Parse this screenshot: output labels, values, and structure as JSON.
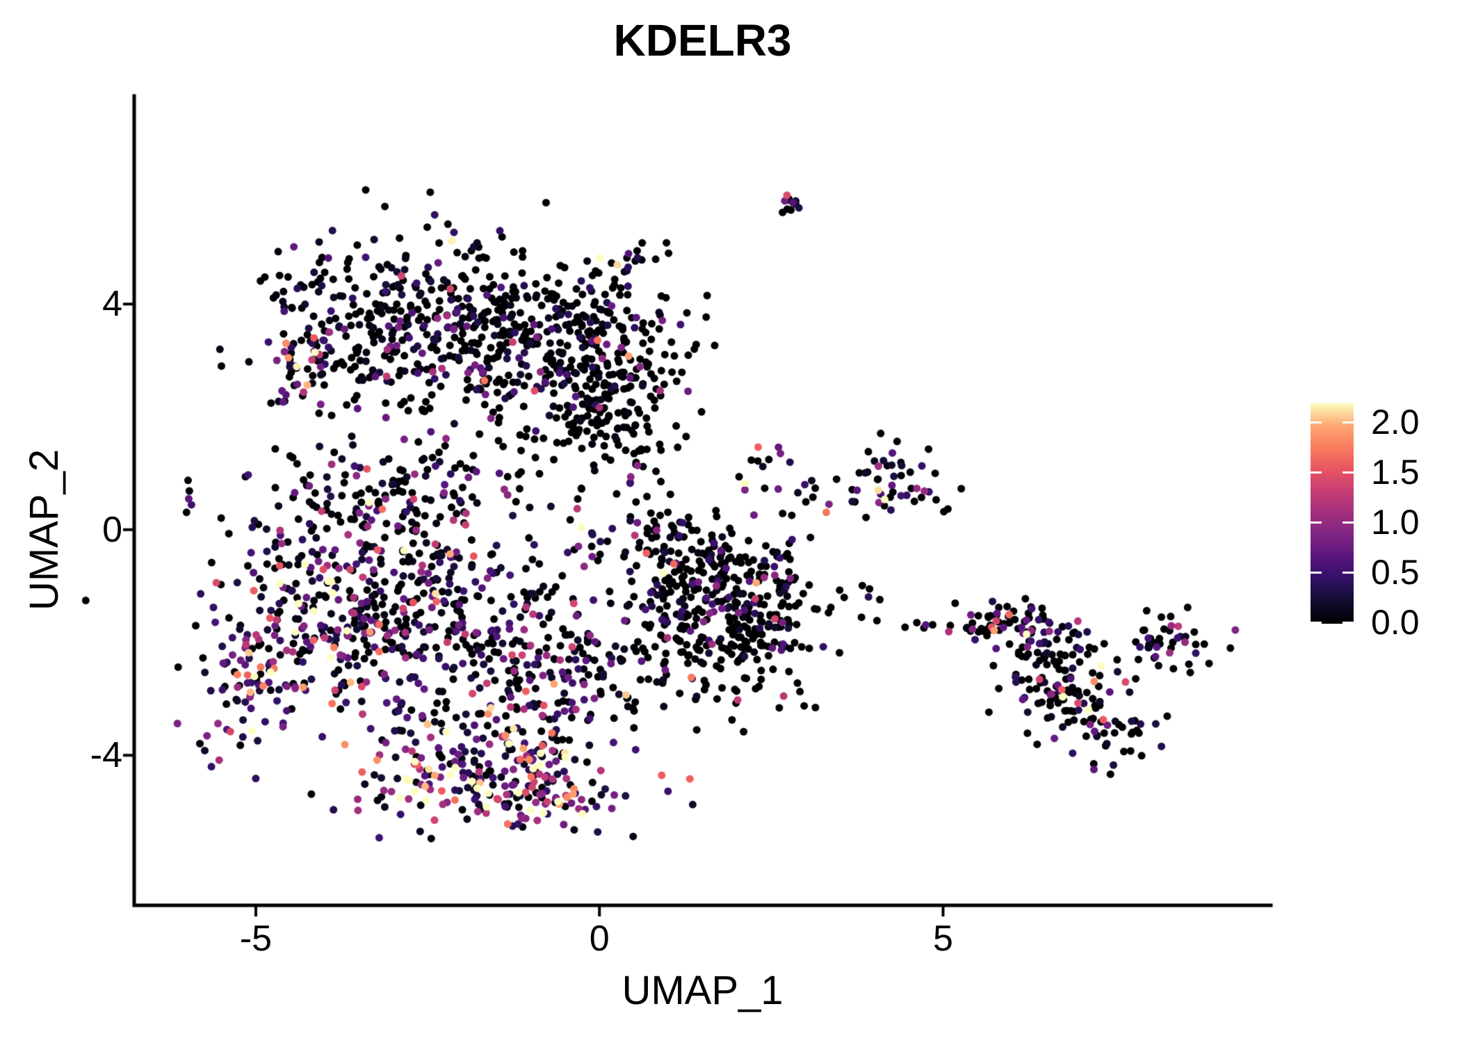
{
  "figure": {
    "background": "#ffffff",
    "axis_color": "#000000",
    "text_color": "#000000"
  },
  "chart_data": {
    "type": "scatter",
    "title": "KDELR3",
    "xlabel": "UMAP_1",
    "ylabel": "UMAP_2",
    "xlim": [
      -6.77,
      9.77
    ],
    "ylim": [
      -6.66,
      7.69
    ],
    "x_tick_values": [
      -5,
      0,
      5
    ],
    "x_tick_labels": [
      "-5",
      "0",
      "5"
    ],
    "y_tick_values": [
      -4,
      0,
      4
    ],
    "y_tick_labels": [
      "-4",
      "0",
      "4"
    ],
    "grid": false,
    "legend_position": "right",
    "point_radius_px": 5.5,
    "seed": 1337,
    "colorbar": {
      "tick_labels": [
        "2.0",
        "1.5",
        "1.0",
        "0.5",
        "0.0"
      ],
      "tick_values": [
        2.0,
        1.5,
        1.0,
        0.5,
        0.0
      ],
      "vmin": 0.0,
      "vmax": 2.1875,
      "colormap": "magma",
      "stops": [
        [
          0.0,
          "#000004"
        ],
        [
          0.1,
          "#120D31"
        ],
        [
          0.2,
          "#331068"
        ],
        [
          0.3,
          "#5A167E"
        ],
        [
          0.4,
          "#7F2582"
        ],
        [
          0.5,
          "#A3307E"
        ],
        [
          0.6,
          "#C83E73"
        ],
        [
          0.7,
          "#E95562"
        ],
        [
          0.8,
          "#F97C5D"
        ],
        [
          0.9,
          "#FEA973"
        ],
        [
          1.0,
          "#FCFDBF"
        ]
      ]
    },
    "clusters": [
      {
        "name": "topleft-main",
        "cx": -2.7,
        "cy": 4.0,
        "sx": 1.05,
        "sy": 0.62,
        "rho": 0,
        "n": 270,
        "zero_frac": 0.55,
        "expr_scale": 0.45
      },
      {
        "name": "topleft-lower",
        "cx": -2.2,
        "cy": 2.9,
        "sx": 1.15,
        "sy": 0.55,
        "rho": 0,
        "n": 180,
        "zero_frac": 0.55,
        "expr_scale": 0.5
      },
      {
        "name": "topleft-right-dense",
        "cx": 0.0,
        "cy": 2.3,
        "sx": 0.55,
        "sy": 0.75,
        "rho": 0,
        "n": 200,
        "zero_frac": 0.78,
        "expr_scale": 0.35
      },
      {
        "name": "topleft-upper-right",
        "cx": -0.6,
        "cy": 3.65,
        "sx": 0.8,
        "sy": 0.55,
        "rho": 0,
        "n": 150,
        "zero_frac": 0.72,
        "expr_scale": 0.4
      },
      {
        "name": "topleft-left-edge",
        "cx": -4.25,
        "cy": 2.95,
        "sx": 0.33,
        "sy": 0.5,
        "rho": 0.3,
        "n": 42,
        "zero_frac": 0.22,
        "expr_scale": 0.85
      },
      {
        "name": "topleft-right-sparse",
        "cx": 0.95,
        "cy": 3.1,
        "sx": 0.35,
        "sy": 0.7,
        "rho": 0,
        "n": 25,
        "zero_frac": 0.7,
        "expr_scale": 0.5
      },
      {
        "name": "topleft-top-outliers",
        "cx": -2.3,
        "cy": 5.6,
        "sx": 0.3,
        "sy": 0.22,
        "rho": 0,
        "n": 4,
        "zero_frac": 0.7,
        "expr_scale": 0.4
      },
      {
        "name": "trail-top-middle",
        "cx": 0.0,
        "cy": 4.1,
        "sx": 0.38,
        "sy": 0.45,
        "rho": 0.85,
        "n": 14,
        "zero_frac": 0.6,
        "expr_scale": 0.5
      },
      {
        "name": "spot-upper-middle",
        "cx": 0.55,
        "cy": 4.85,
        "sx": 0.22,
        "sy": 0.14,
        "rho": 0.2,
        "n": 12,
        "zero_frac": 0.35,
        "expr_scale": 0.8
      },
      {
        "name": "spot-top",
        "cx": 2.8,
        "cy": 5.85,
        "sx": 0.18,
        "sy": 0.15,
        "rho": 0,
        "n": 11,
        "zero_frac": 0.3,
        "expr_scale": 1.0
      },
      {
        "name": "lowerleft-upper",
        "cx": -3.0,
        "cy": 0.35,
        "sx": 1.0,
        "sy": 0.75,
        "rho": 0,
        "n": 200,
        "zero_frac": 0.5,
        "expr_scale": 0.5
      },
      {
        "name": "lowerleft-core",
        "cx": -3.1,
        "cy": -1.7,
        "sx": 1.15,
        "sy": 0.95,
        "rho": 0,
        "n": 380,
        "zero_frac": 0.32,
        "expr_scale": 0.65
      },
      {
        "name": "lowerleft-left-edge",
        "cx": -4.9,
        "cy": -2.0,
        "sx": 0.45,
        "sy": 1.0,
        "rho": 0.45,
        "n": 110,
        "zero_frac": 0.22,
        "expr_scale": 0.85
      },
      {
        "name": "lowerleft-left-outliers",
        "cx": -6.05,
        "cy": 0.7,
        "sx": 0.2,
        "sy": 0.35,
        "rho": 0,
        "n": 5,
        "zero_frac": 0.5,
        "expr_scale": 0.5
      },
      {
        "name": "lowerleft-bottom-band",
        "cx": -1.7,
        "cy": -4.2,
        "sx": 1.05,
        "sy": 0.5,
        "rho": 0,
        "n": 200,
        "zero_frac": 0.1,
        "expr_scale": 0.95
      },
      {
        "name": "lowerleft-bottom-tip",
        "cx": -0.9,
        "cy": -4.85,
        "sx": 0.45,
        "sy": 0.3,
        "rho": 0,
        "n": 50,
        "zero_frac": 0.08,
        "expr_scale": 1.1
      },
      {
        "name": "lowerleft-right",
        "cx": -0.8,
        "cy": -2.3,
        "sx": 0.85,
        "sy": 1.0,
        "rho": 0,
        "n": 230,
        "zero_frac": 0.42,
        "expr_scale": 0.6
      },
      {
        "name": "neck",
        "cx": 0.75,
        "cy": -0.1,
        "sx": 0.3,
        "sy": 0.4,
        "rho": 0,
        "n": 30,
        "zero_frac": 0.6,
        "expr_scale": 0.55
      },
      {
        "name": "midright-core",
        "cx": 1.55,
        "cy": -1.7,
        "sx": 0.7,
        "sy": 0.8,
        "rho": 0,
        "n": 260,
        "zero_frac": 0.75,
        "expr_scale": 0.45
      },
      {
        "name": "midright-right-dense",
        "cx": 2.4,
        "cy": -1.2,
        "sx": 0.4,
        "sy": 0.55,
        "rho": 0,
        "n": 90,
        "zero_frac": 0.72,
        "expr_scale": 0.5
      },
      {
        "name": "midright-top",
        "cx": 1.3,
        "cy": -0.4,
        "sx": 0.55,
        "sy": 0.3,
        "rho": 0,
        "n": 60,
        "zero_frac": 0.7,
        "expr_scale": 0.5
      },
      {
        "name": "bridge-dots",
        "cx": 3.7,
        "cy": -1.35,
        "sx": 0.75,
        "sy": 0.28,
        "rho": -0.3,
        "n": 14,
        "zero_frac": 0.85,
        "expr_scale": 0.4
      },
      {
        "name": "spot-middle",
        "cx": 2.3,
        "cy": 1.15,
        "sx": 0.22,
        "sy": 0.28,
        "rho": 0.2,
        "n": 11,
        "zero_frac": 0.25,
        "expr_scale": 0.9
      },
      {
        "name": "rightmid-trail",
        "cx": 3.0,
        "cy": 0.45,
        "sx": 0.45,
        "sy": 0.35,
        "rho": 0,
        "n": 8,
        "zero_frac": 0.45,
        "expr_scale": 0.7
      },
      {
        "name": "rightmid-cluster",
        "cx": 4.2,
        "cy": 0.85,
        "sx": 0.42,
        "sy": 0.38,
        "rho": 0.35,
        "n": 48,
        "zero_frac": 0.48,
        "expr_scale": 0.75
      },
      {
        "name": "rightmid-outlier",
        "cx": 5.05,
        "cy": 0.5,
        "sx": 0.2,
        "sy": 0.3,
        "rho": 0,
        "n": 3,
        "zero_frac": 0.5,
        "expr_scale": 0.8
      },
      {
        "name": "gap-dots",
        "cx": 4.95,
        "cy": -1.75,
        "sx": 0.28,
        "sy": 0.12,
        "rho": 0,
        "n": 5,
        "zero_frac": 0.7,
        "expr_scale": 0.5
      },
      {
        "name": "farright-band",
        "cx": 5.95,
        "cy": -1.68,
        "sx": 0.5,
        "sy": 0.17,
        "rho": 0,
        "n": 55,
        "zero_frac": 0.5,
        "expr_scale": 0.55
      },
      {
        "name": "farright-mid",
        "cx": 6.55,
        "cy": -2.3,
        "sx": 0.5,
        "sy": 0.45,
        "rho": -0.5,
        "n": 85,
        "zero_frac": 0.58,
        "expr_scale": 0.5
      },
      {
        "name": "farright-hook",
        "cx": 7.1,
        "cy": -3.3,
        "sx": 0.55,
        "sy": 0.42,
        "rho": -0.45,
        "n": 85,
        "zero_frac": 0.62,
        "expr_scale": 0.5
      },
      {
        "name": "farright-right",
        "cx": 8.25,
        "cy": -2.05,
        "sx": 0.4,
        "sy": 0.3,
        "rho": 0,
        "n": 45,
        "zero_frac": 0.6,
        "expr_scale": 0.5
      }
    ]
  }
}
